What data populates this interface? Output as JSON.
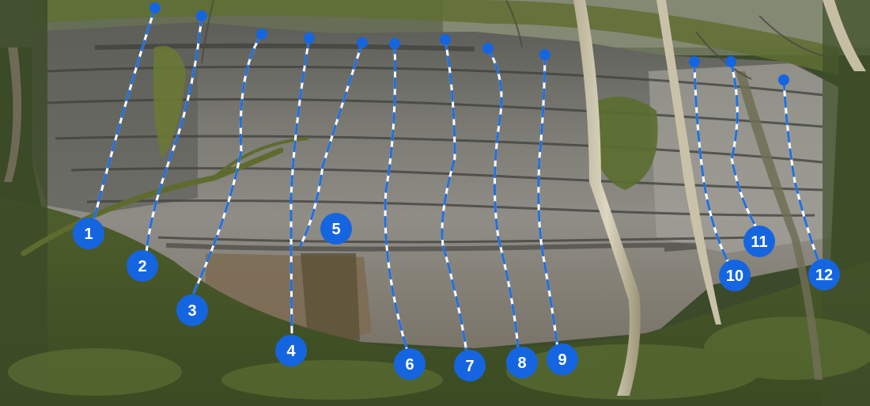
{
  "image": {
    "subject": "limestone crag in woodland with numbered climbing route lines",
    "colors": {
      "route_line_blue": "#1f6fe0",
      "route_line_white": "#ffffff",
      "marker_fill": "#1565e0",
      "marker_text": "#ffffff",
      "rock_light": "#9a9890",
      "rock_dark": "#4f514d",
      "foliage": "#4a5e2a"
    }
  },
  "routes": [
    {
      "number": "1"
    },
    {
      "number": "2"
    },
    {
      "number": "3"
    },
    {
      "number": "4"
    },
    {
      "number": "5"
    },
    {
      "number": "6"
    },
    {
      "number": "7"
    },
    {
      "number": "8"
    },
    {
      "number": "9"
    },
    {
      "number": "10"
    },
    {
      "number": "11"
    },
    {
      "number": "12"
    }
  ]
}
